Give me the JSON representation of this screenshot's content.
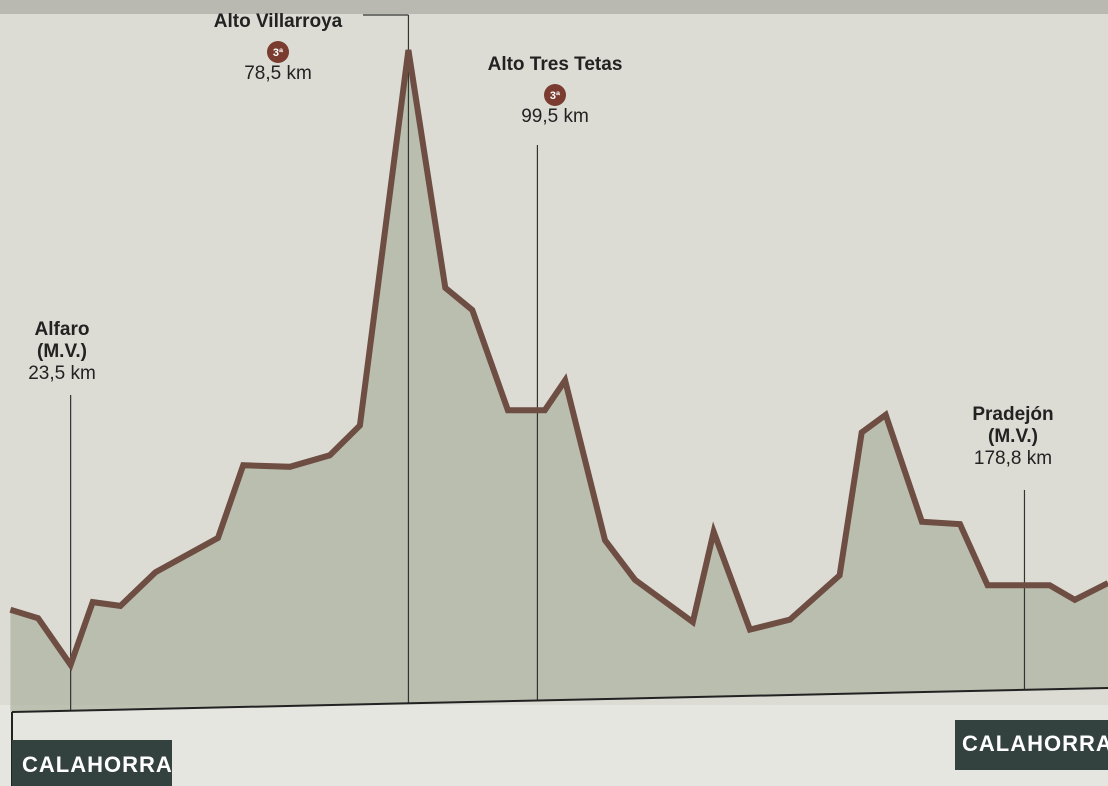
{
  "chart_data": {
    "type": "area",
    "x": [
      13.7,
      18.2,
      23.5,
      27.1,
      31.6,
      37.3,
      47.5,
      51.6,
      59.2,
      65.7,
      70.6,
      78.5,
      84.5,
      88.9,
      94.7,
      100.7,
      104.0,
      110.5,
      115.4,
      124.8,
      128.2,
      134.1,
      140.6,
      148.7,
      152.3,
      156.2,
      162.1,
      168.3,
      172.8,
      182.9,
      187.0,
      192.4
    ],
    "values": [
      368,
      357,
      296,
      378,
      373,
      417,
      462,
      557,
      555,
      570,
      609,
      1100,
      789,
      760,
      629,
      629,
      668,
      459,
      407,
      352,
      470,
      342,
      355,
      413,
      600,
      623,
      483,
      480,
      400,
      400,
      381,
      403
    ],
    "color": "#6e4d43",
    "xlim": [
      12,
      192.4
    ],
    "ylim": [
      250,
      1100
    ],
    "annotations": [
      {
        "lines": [
          "Alfaro",
          "(M.V.)"
        ],
        "distance": {
          "value": 23.5,
          "label": "23,5 km"
        }
      },
      {
        "lines": [
          "Alto Villarroya"
        ],
        "category": "3ª",
        "distance": {
          "value": 78.5,
          "label": "78,5 km"
        }
      },
      {
        "lines": [
          "Alto Tres Tetas"
        ],
        "category": "3ª",
        "distance": {
          "value": 99.5,
          "label": "99,5 km"
        }
      },
      {
        "lines": [
          "Pradejón",
          "(M.V.)"
        ],
        "distance": {
          "value": 178.8,
          "label": "178,8 km"
        }
      }
    ],
    "start": "CALAHORRA",
    "finish": "CALAHORRA"
  }
}
